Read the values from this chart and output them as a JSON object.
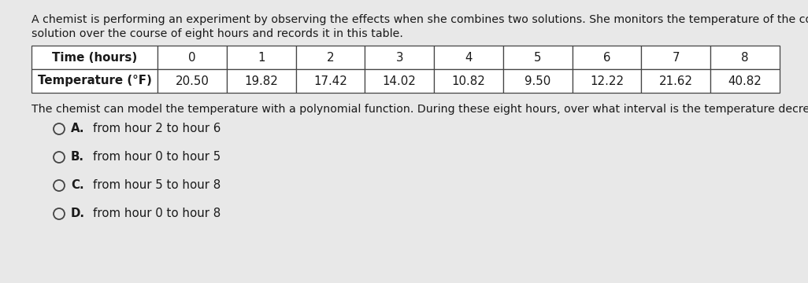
{
  "background_color": "#e8e8e8",
  "intro_line1": "A chemist is performing an experiment by observing the effects when she combines two solutions. She monitors the temperature of the combined",
  "intro_line2": "solution over the course of eight hours and records it in this table.",
  "table_headers": [
    "Time (hours)",
    "0",
    "1",
    "2",
    "3",
    "4",
    "5",
    "6",
    "7",
    "8"
  ],
  "table_row_label": "Temperature (°F)",
  "table_values": [
    "20.50",
    "19.82",
    "17.42",
    "14.02",
    "10.82",
    "9.50",
    "12.22",
    "21.62",
    "40.82"
  ],
  "question_text": "The chemist can model the temperature with a polynomial function. During these eight hours, over what interval is the temperature decreasing?",
  "options": [
    {
      "label": "A.",
      "text": "  from hour 2 to hour 6"
    },
    {
      "label": "B.",
      "text": "  from hour 0 to hour 5"
    },
    {
      "label": "C.",
      "text": "  from hour 5 to hour 8"
    },
    {
      "label": "D.",
      "text": "  from hour 0 to hour 8"
    }
  ],
  "intro_font_size": 10.2,
  "table_font_size": 10.8,
  "question_font_size": 10.2,
  "option_font_size": 10.8,
  "text_color": "#1a1a1a",
  "table_border_color": "#444444",
  "table_bg": "#ffffff",
  "circle_color": "#444444"
}
